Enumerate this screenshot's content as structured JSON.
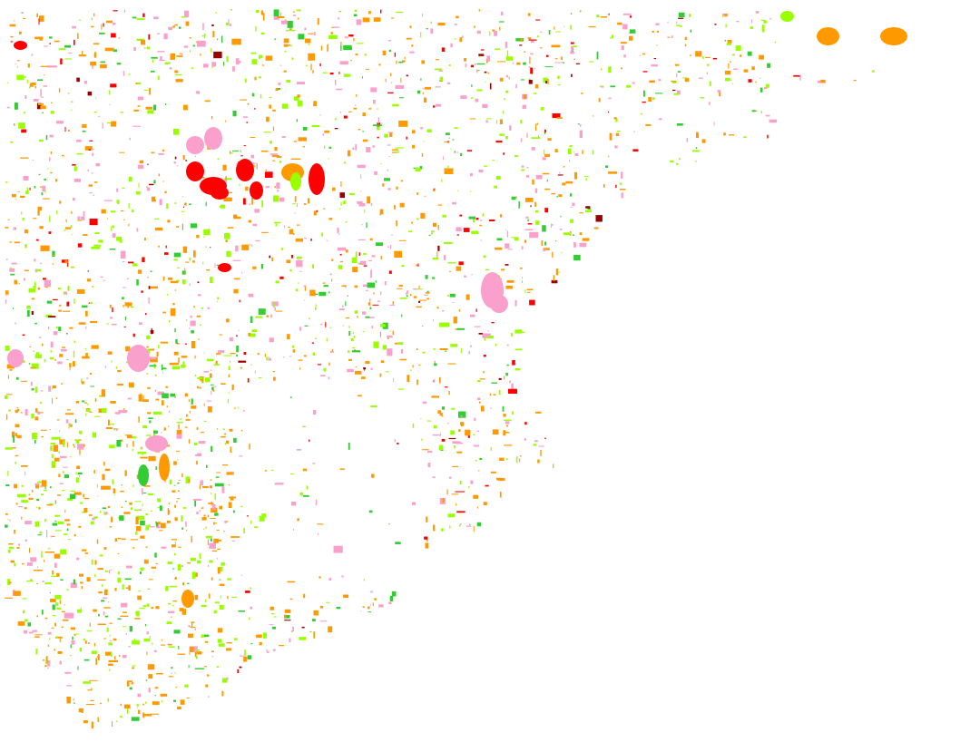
{
  "map": {
    "background": "#ffffff",
    "land_use_colors": {
      "orange": "#ff9900",
      "pink": "#f9a0cc",
      "light_green": "#99ff00",
      "green": "#33cc33",
      "red": "#ff0000",
      "dark_red": "#990000"
    }
  }
}
